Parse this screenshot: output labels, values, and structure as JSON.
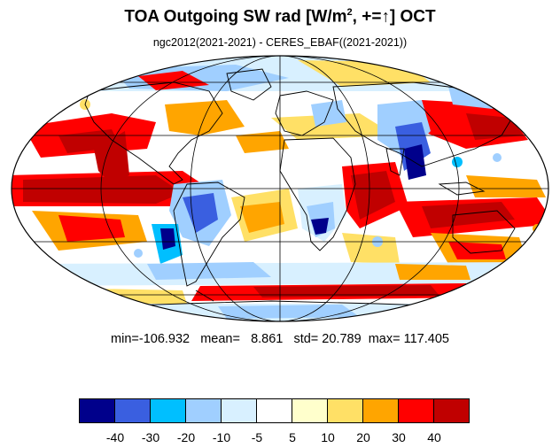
{
  "title": {
    "text": "TOA Outgoing SW rad [W/m",
    "superscript": "2",
    "suffix": ", +=↑] OCT"
  },
  "subtitle": "ngc2012(2021-2021) - CERES_EBAF((2021-2021))",
  "stats": {
    "min_label": "min=",
    "min": "-106.932",
    "mean_label": "mean=",
    "mean": "8.861",
    "std_label": "std=",
    "std": "20.789",
    "max_label": "max=",
    "max": "117.405"
  },
  "colorbar": {
    "colors": [
      "#00008b",
      "#3a5fe0",
      "#00bfff",
      "#a0cfff",
      "#d8f0ff",
      "#ffffff",
      "#ffffcc",
      "#ffe066",
      "#ffa500",
      "#ff0000",
      "#c00000"
    ],
    "ticks": [
      "-40",
      "-30",
      "-20",
      "-10",
      "-5",
      "5",
      "10",
      "20",
      "30",
      "40"
    ]
  },
  "map": {
    "projection": "mollweide",
    "palette": {
      "dark_blue": "#00008b",
      "blue": "#3a5fe0",
      "cyan": "#00bfff",
      "light_blue": "#a0cfff",
      "pale_blue": "#d8f0ff",
      "white": "#ffffff",
      "pale_yellow": "#ffffcc",
      "yellow": "#ffe066",
      "orange": "#ffa500",
      "red": "#ff0000",
      "dark_red": "#c00000"
    }
  }
}
